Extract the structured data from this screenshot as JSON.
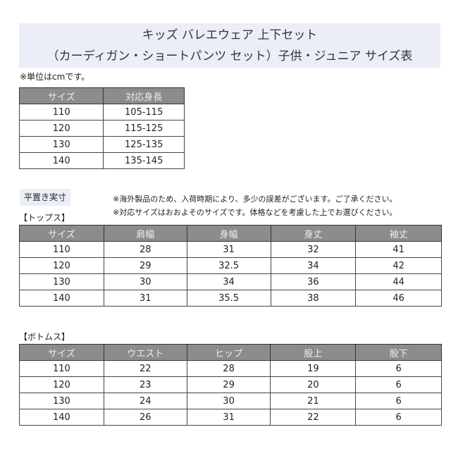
{
  "title": {
    "line1": "キッズ バレエウェア 上下セット",
    "line2": "（カーディガン・ショートパンツ セット）子供・ジュニア サイズ表"
  },
  "unit_note": "※単位はcmです。",
  "height_table": {
    "headers": [
      "サイズ",
      "対応身長"
    ],
    "rows": [
      [
        "110",
        "105-115"
      ],
      [
        "120",
        "115-125"
      ],
      [
        "130",
        "125-135"
      ],
      [
        "140",
        "135-145"
      ]
    ]
  },
  "flat_label": "平置き実寸",
  "notes": [
    "※海外製品のため、入荷時期により、多少の誤差がございます。ご了承ください。",
    "※対応サイズはおおよそのサイズです。体格などを考慮した上でお選びください。"
  ],
  "tops": {
    "label": "【トップス】",
    "headers": [
      "サイズ",
      "肩幅",
      "身幅",
      "身丈",
      "袖丈"
    ],
    "rows": [
      [
        "110",
        "28",
        "31",
        "32",
        "41"
      ],
      [
        "120",
        "29",
        "32.5",
        "34",
        "42"
      ],
      [
        "130",
        "30",
        "34",
        "36",
        "44"
      ],
      [
        "140",
        "31",
        "35.5",
        "38",
        "46"
      ]
    ]
  },
  "bottoms": {
    "label": "【ボトムス】",
    "headers": [
      "サイズ",
      "ウエスト",
      "ヒップ",
      "股上",
      "股下"
    ],
    "rows": [
      [
        "110",
        "22",
        "28",
        "19",
        "6"
      ],
      [
        "120",
        "23",
        "29",
        "20",
        "6"
      ],
      [
        "130",
        "24",
        "30",
        "21",
        "6"
      ],
      [
        "140",
        "26",
        "31",
        "22",
        "6"
      ]
    ]
  }
}
